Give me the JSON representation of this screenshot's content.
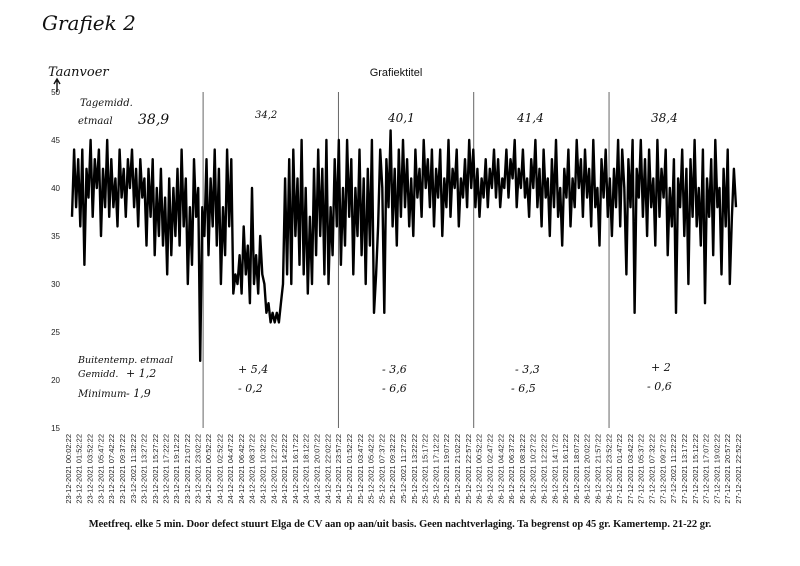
{
  "page_heading": "Grafiek 2",
  "chart_data": {
    "type": "line",
    "title": "Grafiektitel",
    "ylabel": "Taanvoer",
    "ylim": [
      15,
      50
    ],
    "yticks": [
      "15",
      "20",
      "25",
      "30",
      "35",
      "40",
      "45",
      "50"
    ],
    "x_labels": [
      "23-12-2021 00:02:22",
      "23-12-2021 01:52:22",
      "23-12-2021 03:52:22",
      "23-12-2021 05:47:22",
      "23-12-2021 07:42:22",
      "23-12-2021 09:37:22",
      "23-12-2021 11:32:22",
      "23-12-2021 13:27:22",
      "23-12-2021 15:27:22",
      "23-12-2021 17:22:22",
      "23-12-2021 19:12:22",
      "23-12-2021 21:07:22",
      "23-12-2021 23:02:22",
      "24-12-2021 00:52:22",
      "24-12-2021 02:52:22",
      "24-12-2021 04:47:22",
      "24-12-2021 06:42:22",
      "24-12-2021 08:37:22",
      "24-12-2021 10:32:22",
      "24-12-2021 12:27:22",
      "24-12-2021 14:22:22",
      "24-12-2021 16:17:22",
      "24-12-2021 18:12:22",
      "24-12-2021 20:07:22",
      "24-12-2021 22:02:22",
      "24-12-2021 23:57:22",
      "25-12-2021 01:52:22",
      "25-12-2021 03:47:22",
      "25-12-2021 05:42:22",
      "25-12-2021 07:37:22",
      "25-12-2021 09:32:22",
      "25-12-2021 11:27:22",
      "25-12-2021 13:22:22",
      "25-12-2021 15:17:22",
      "25-12-2021 17:12:22",
      "25-12-2021 19:07:22",
      "25-12-2021 21:02:22",
      "25-12-2021 22:57:22",
      "26-12-2021 00:52:22",
      "26-12-2021 02:47:22",
      "26-12-2021 04:42:22",
      "26-12-2021 06:37:22",
      "26-12-2021 08:32:22",
      "26-12-2021 10:27:22",
      "26-12-2021 12:22:22",
      "26-12-2021 14:17:22",
      "26-12-2021 16:12:22",
      "26-12-2021 18:07:22",
      "26-12-2021 20:02:22",
      "26-12-2021 21:57:22",
      "26-12-2021 23:52:22",
      "27-12-2021 01:47:22",
      "27-12-2021 03:42:22",
      "27-12-2021 05:37:22",
      "27-12-2021 07:32:22",
      "27-12-2021 09:27:22",
      "27-12-2021 11:22:22",
      "27-12-2021 13:17:22",
      "27-12-2021 15:12:22",
      "27-12-2021 17:07:22",
      "27-12-2021 19:02:22",
      "27-12-2021 20:57:22",
      "27-12-2021 22:52:22"
    ],
    "day_dividers": [
      "24-12-2021 00:00:00",
      "25-12-2021 00:00:00",
      "26-12-2021 00:00:00",
      "27-12-2021 00:00:00"
    ],
    "series": [
      {
        "color": "#000000",
        "values": [
          37,
          44,
          38,
          43,
          36,
          44,
          32,
          42,
          39,
          45,
          37,
          43,
          40,
          44,
          35,
          42,
          38,
          45,
          37,
          43,
          38,
          41,
          36,
          44,
          39,
          42,
          37,
          43,
          40,
          44,
          38,
          42,
          36,
          43,
          39,
          41,
          34,
          42,
          37,
          43,
          33,
          40,
          35,
          42,
          34,
          39,
          31,
          41,
          33,
          40,
          35,
          42,
          34,
          44,
          36,
          41,
          30,
          38,
          32,
          43,
          37,
          40,
          22,
          38,
          35,
          43,
          33,
          41,
          36,
          44,
          34,
          42,
          30,
          38,
          33,
          44,
          36,
          43,
          29,
          31,
          30,
          33,
          29,
          36,
          31,
          34,
          28,
          40,
          30,
          33,
          29,
          35,
          31,
          30,
          27,
          28,
          26,
          27,
          26,
          27,
          26,
          28,
          30,
          41,
          31,
          43,
          30,
          44,
          35,
          41,
          32,
          45,
          31,
          40,
          29,
          37,
          30,
          42,
          33,
          44,
          35,
          42,
          31,
          45,
          30,
          38,
          33,
          43,
          36,
          45,
          32,
          40,
          34,
          45,
          37,
          43,
          31,
          40,
          35,
          44,
          33,
          41,
          30,
          42,
          34,
          45,
          27,
          31,
          36,
          44,
          40,
          27,
          43,
          38,
          46,
          36,
          42,
          34,
          44,
          37,
          45,
          38,
          43,
          36,
          41,
          35,
          44,
          39,
          42,
          37,
          45,
          40,
          43,
          38,
          44,
          36,
          42,
          39,
          44,
          35,
          41,
          38,
          45,
          37,
          42,
          40,
          44,
          36,
          41,
          39,
          43,
          38,
          45,
          40,
          44,
          38,
          42,
          37,
          41,
          39,
          43,
          38,
          42,
          40,
          44,
          39,
          43,
          38,
          41,
          40,
          44,
          39,
          43,
          41,
          45,
          38,
          42,
          40,
          44,
          39,
          41,
          37,
          43,
          40,
          45,
          38,
          42,
          36,
          44,
          39,
          41,
          35,
          43,
          38,
          45,
          37,
          40,
          34,
          42,
          39,
          44,
          36,
          41,
          38,
          45,
          40,
          43,
          37,
          44,
          39,
          42,
          36,
          45,
          38,
          40,
          34,
          43,
          39,
          44,
          37,
          41,
          35,
          42,
          38,
          45,
          36,
          44,
          40,
          31,
          43,
          38,
          45,
          27,
          42,
          39,
          45,
          37,
          43,
          35,
          44,
          38,
          41,
          34,
          45,
          37,
          42,
          39,
          44,
          33,
          40,
          36,
          43,
          27,
          41,
          38,
          44,
          35,
          42,
          30,
          43,
          37,
          45,
          36,
          40,
          34,
          44,
          28,
          41,
          37,
          43,
          33,
          45,
          38,
          40,
          31,
          42,
          36,
          44,
          30,
          37,
          42,
          38
        ]
      }
    ],
    "annotations": {
      "daily_avg_label": "Tagemidd. etmaal",
      "daily_avg_values": [
        "38,9",
        "34,2",
        "40,1",
        "41,4",
        "38,4"
      ],
      "outside_label": "Buitentemp. etmaal Gemidd.",
      "outside_avg_values": [
        "+ 1,2",
        "+ 5,4",
        "- 3,6",
        "- 3,3",
        "+ 2"
      ],
      "minimum_label": "Minimum",
      "minimum_values": [
        "- 1,9",
        "- 0,2",
        "- 6,6",
        "- 6,5",
        "- 0,6"
      ]
    }
  },
  "caption": "Meetfreq. elke 5 min. Door defect stuurt Elga de CV aan op aan/uit basis. Geen nachtverlaging. Ta begrenst op 45 gr. Kamertemp. 21-22 gr."
}
